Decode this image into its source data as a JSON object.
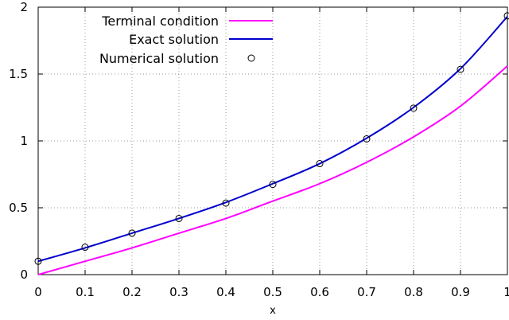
{
  "chart_data": {
    "type": "line",
    "title": "",
    "xlabel": "x",
    "ylabel": "",
    "xlim": [
      0,
      1
    ],
    "ylim": [
      0,
      2
    ],
    "x_ticks": [
      "0",
      "0.1",
      "0.2",
      "0.3",
      "0.4",
      "0.5",
      "0.6",
      "0.7",
      "0.8",
      "0.9",
      "1"
    ],
    "y_ticks": [
      "0",
      "0.5",
      "1",
      "1.5",
      "2"
    ],
    "grid": "dotted",
    "legend_position": "top-left",
    "series": [
      {
        "name": "Terminal condition",
        "style": "line",
        "color": "#ff00ff",
        "x": [
          0,
          0.1,
          0.2,
          0.3,
          0.4,
          0.5,
          0.6,
          0.7,
          0.8,
          0.9,
          1.0
        ],
        "y": [
          0,
          0.1,
          0.2,
          0.31,
          0.42,
          0.55,
          0.68,
          0.84,
          1.03,
          1.26,
          1.56
        ]
      },
      {
        "name": "Exact solution",
        "style": "line",
        "color": "#0000cc",
        "x": [
          0,
          0.1,
          0.2,
          0.3,
          0.4,
          0.5,
          0.6,
          0.7,
          0.8,
          0.9,
          1.0
        ],
        "y": [
          0.1,
          0.2,
          0.31,
          0.42,
          0.54,
          0.68,
          0.83,
          1.02,
          1.25,
          1.54,
          1.93
        ]
      },
      {
        "name": "Numerical solution",
        "style": "points",
        "color": "#000000",
        "x": [
          0,
          0.1,
          0.2,
          0.3,
          0.4,
          0.5,
          0.6,
          0.7,
          0.8,
          0.9,
          1.0
        ],
        "y": [
          0.1,
          0.205,
          0.31,
          0.42,
          0.535,
          0.675,
          0.83,
          1.015,
          1.245,
          1.535,
          1.935
        ]
      }
    ]
  }
}
